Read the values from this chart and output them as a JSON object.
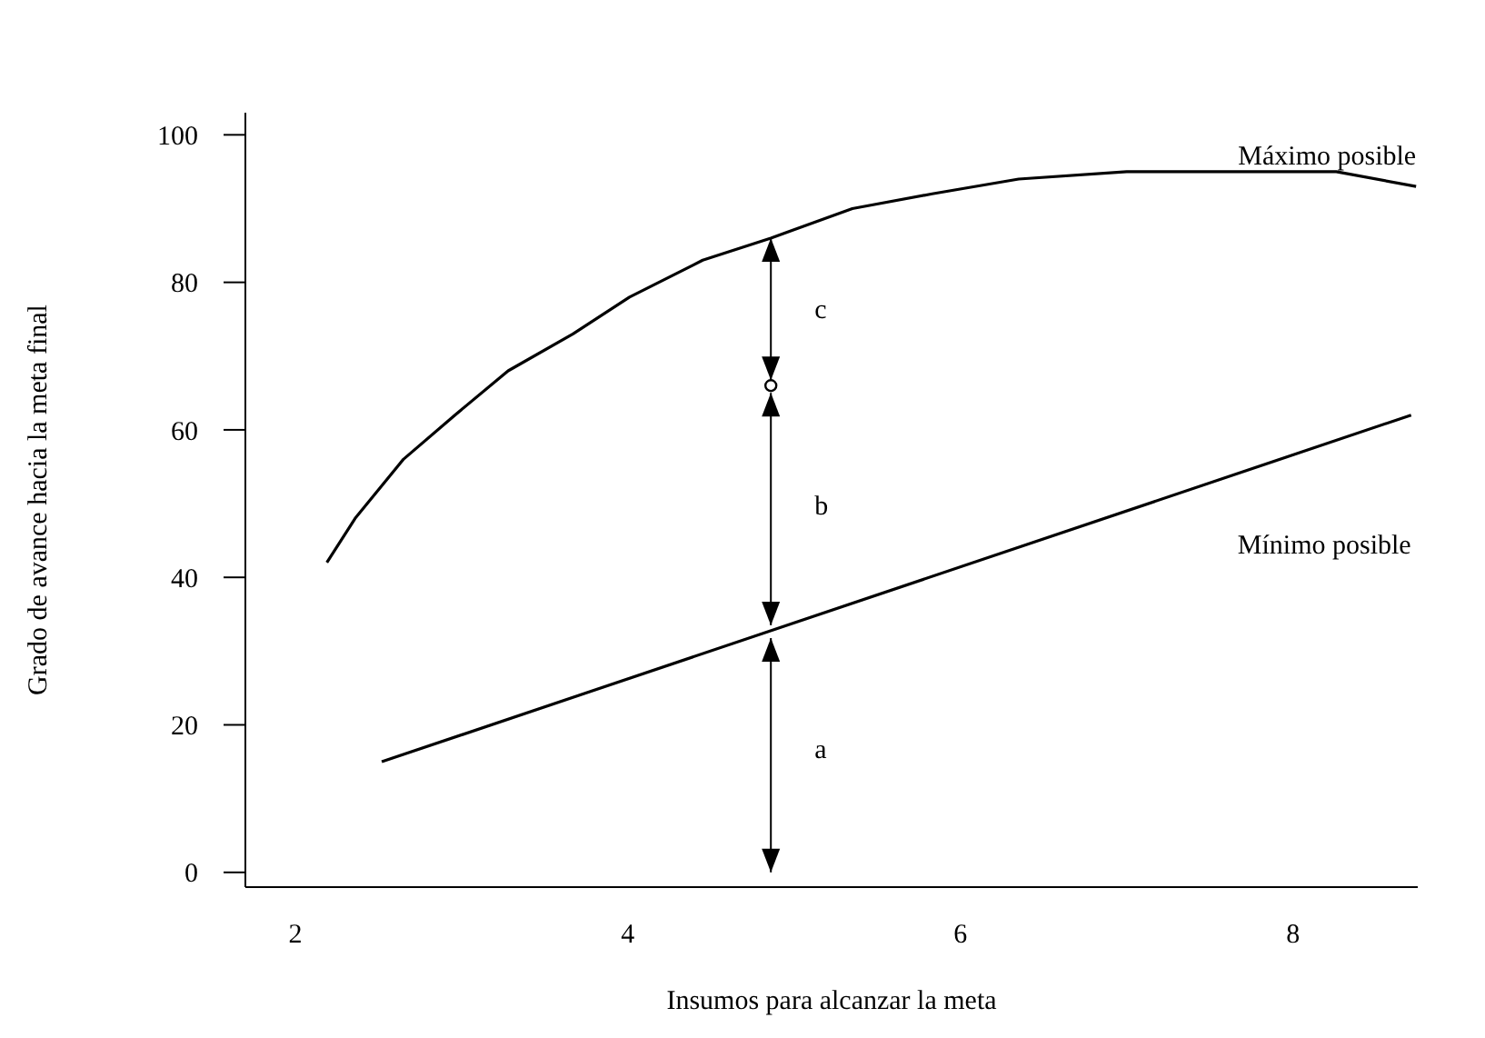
{
  "chart_data": {
    "type": "line",
    "xlabel": "Insumos para alcanzar la meta",
    "ylabel": "Grado de avance hacia la meta final",
    "xlim": [
      1.7,
      8.75
    ],
    "ylim": [
      -2,
      103
    ],
    "xticks": [
      2,
      4,
      6,
      8
    ],
    "yticks": [
      0,
      20,
      40,
      60,
      80,
      100
    ],
    "line_style": "solid",
    "series": [
      {
        "name": "Máximo posible",
        "color": "#000000",
        "marker": "none",
        "x": [
          2.19,
          2.36,
          2.65,
          2.96,
          3.28,
          3.67,
          4.01,
          4.45,
          4.86,
          5.35,
          5.83,
          6.35,
          7.0,
          7.77,
          8.26,
          8.74
        ],
        "values": [
          42,
          48,
          56,
          62,
          68,
          73,
          78,
          83,
          86,
          90,
          92,
          94,
          95,
          95,
          95,
          93
        ]
      },
      {
        "name": "Mínimo posible",
        "color": "#000000",
        "marker": "none",
        "x": [
          2.52,
          8.71
        ],
        "values": [
          15,
          62
        ]
      },
      {
        "type": "scatter",
        "color": "#000000",
        "marker": "circle",
        "x": [
          4.86
        ],
        "values": [
          66
        ]
      }
    ],
    "annotations": [
      "a",
      "b",
      "c"
    ]
  }
}
